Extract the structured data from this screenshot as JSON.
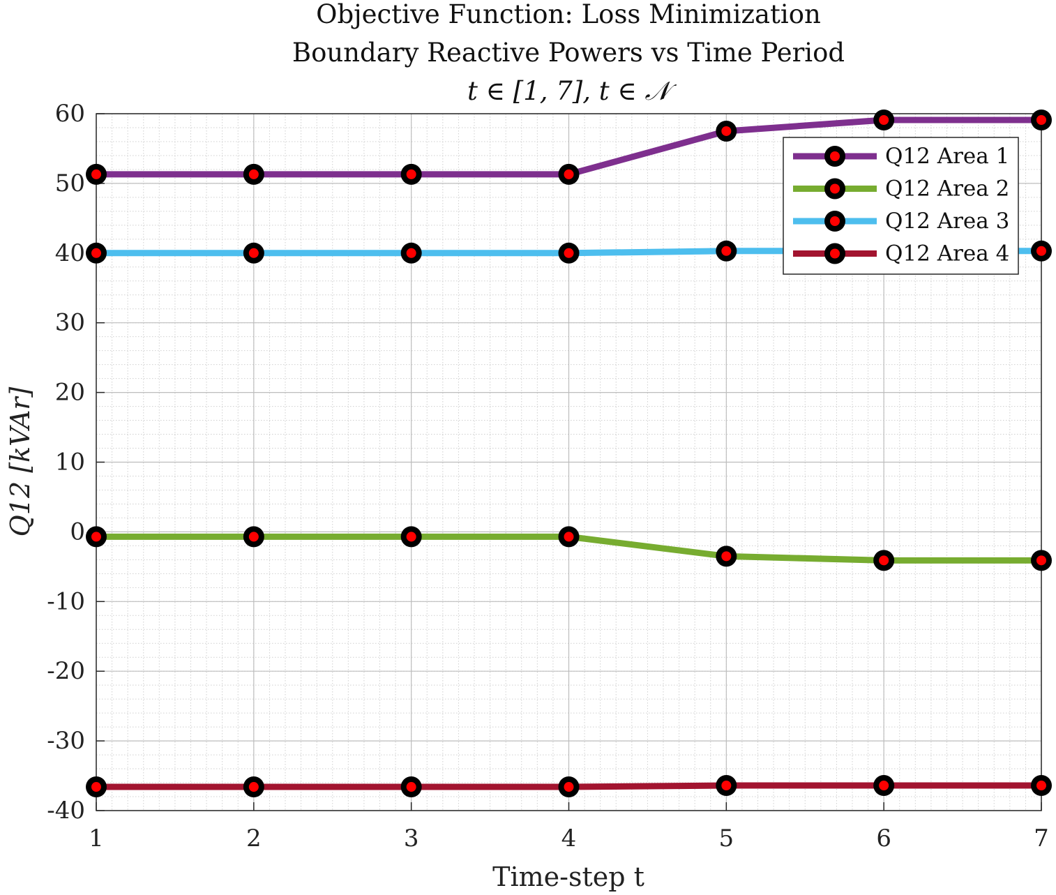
{
  "chart_data": {
    "type": "line",
    "title": [
      "Objective Function: Loss Minimization",
      "Boundary Reactive Powers vs Time Period",
      "t ∈ [1, 7], t ∈ 𝒩"
    ],
    "xlabel": "Time-step t",
    "ylabel": "Q12 [kVAr]",
    "xlim": [
      1,
      7
    ],
    "ylim": [
      -40,
      60
    ],
    "x": [
      1,
      2,
      3,
      4,
      5,
      6,
      7
    ],
    "xticks": [
      "1",
      "2",
      "3",
      "4",
      "5",
      "6",
      "7"
    ],
    "yticks": [
      "60",
      "50",
      "40",
      "30",
      "20",
      "10",
      "0",
      "-10",
      "-20",
      "-30",
      "-40"
    ],
    "grid": true,
    "minor_grid": true,
    "legend_position": "top-right",
    "marker": {
      "style": "circle",
      "edge_color": "#000000",
      "face_color": "#ff0000"
    },
    "series": [
      {
        "name": "Q12 Area 1",
        "color": "#7e2f8e",
        "values": [
          51.3,
          51.3,
          51.3,
          51.3,
          57.5,
          59.1,
          59.1
        ]
      },
      {
        "name": "Q12 Area 2",
        "color": "#77ac30",
        "values": [
          -0.7,
          -0.7,
          -0.7,
          -0.7,
          -3.5,
          -4.1,
          -4.1
        ]
      },
      {
        "name": "Q12 Area 3",
        "color": "#4dbeee",
        "values": [
          40.0,
          40.0,
          40.0,
          40.0,
          40.3,
          40.3,
          40.3
        ]
      },
      {
        "name": "Q12 Area 4",
        "color": "#a2142f",
        "values": [
          -36.6,
          -36.6,
          -36.6,
          -36.6,
          -36.4,
          -36.4,
          -36.4
        ]
      }
    ]
  }
}
